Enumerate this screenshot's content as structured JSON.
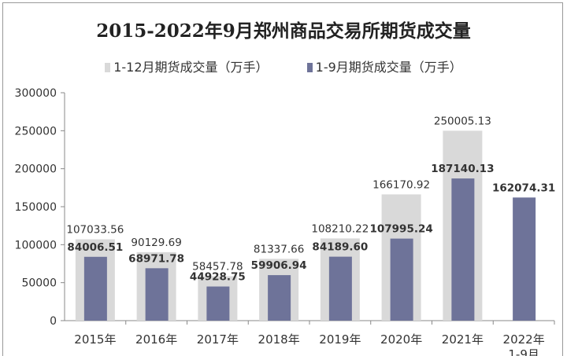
{
  "chart_data": {
    "type": "bar",
    "title": "2015-2022年9月郑州商品交易所期货成交量",
    "categories": [
      "2015年",
      "2016年",
      "2017年",
      "2018年",
      "2019年",
      "2020年",
      "2021年",
      "2022年1-9月"
    ],
    "series": [
      {
        "name": "1-12月期货成交量（万手）",
        "color": "#d9d9d9",
        "values": [
          107033.56,
          90129.69,
          58457.78,
          81337.66,
          108210.22,
          166170.92,
          250005.13,
          null
        ]
      },
      {
        "name": "1-9月期货成交量（万手）",
        "color": "#6e7399",
        "values": [
          84006.51,
          68971.78,
          44928.75,
          59906.94,
          84189.6,
          107995.24,
          187140.13,
          162074.31
        ]
      }
    ],
    "ylim": [
      0,
      300000
    ],
    "yticks": [
      0,
      50000,
      100000,
      150000,
      200000,
      250000,
      300000
    ],
    "legend_position": "top",
    "grid": false
  }
}
